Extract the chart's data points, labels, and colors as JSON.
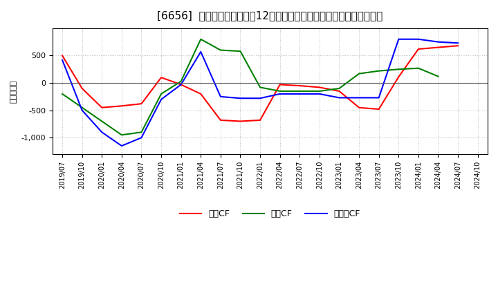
{
  "title": "[6656]  キャッシュフローの12か月移動合計の対前年同期増減額の推移",
  "ylabel": "（百万円）",
  "x_labels": [
    "2019/07",
    "2019/10",
    "2020/01",
    "2020/04",
    "2020/07",
    "2020/10",
    "2021/01",
    "2021/04",
    "2021/07",
    "2021/10",
    "2022/01",
    "2022/04",
    "2022/07",
    "2022/10",
    "2023/01",
    "2023/04",
    "2023/07",
    "2023/10",
    "2024/01",
    "2024/04",
    "2024/07",
    "2024/10"
  ],
  "operating_cf": [
    500,
    -100,
    -450,
    -420,
    -380,
    100,
    -30,
    -200,
    -680,
    -700,
    -680,
    -30,
    -50,
    -80,
    -150,
    -450,
    -480,
    110,
    620,
    650,
    680,
    null
  ],
  "investing_cf": [
    -200,
    -450,
    -700,
    -950,
    -900,
    -200,
    30,
    800,
    600,
    580,
    -80,
    -150,
    -150,
    -150,
    -100,
    170,
    220,
    250,
    270,
    120,
    null,
    null
  ],
  "free_cf": [
    420,
    -500,
    -900,
    -1150,
    -1000,
    -300,
    -30,
    570,
    -250,
    -280,
    -280,
    -200,
    -200,
    -200,
    -270,
    -270,
    -270,
    800,
    800,
    750,
    730,
    null
  ],
  "ylim": [
    -1300,
    1000
  ],
  "yticks": [
    -1000,
    -500,
    0,
    500
  ],
  "operating_color": "#ff0000",
  "investing_color": "#008000",
  "free_color": "#0000ff",
  "bg_color": "#ffffff",
  "plot_bg_color": "#ffffff",
  "grid_color": "#aaaaaa",
  "legend_labels": [
    "営業CF",
    "投資CF",
    "フリーCF"
  ]
}
